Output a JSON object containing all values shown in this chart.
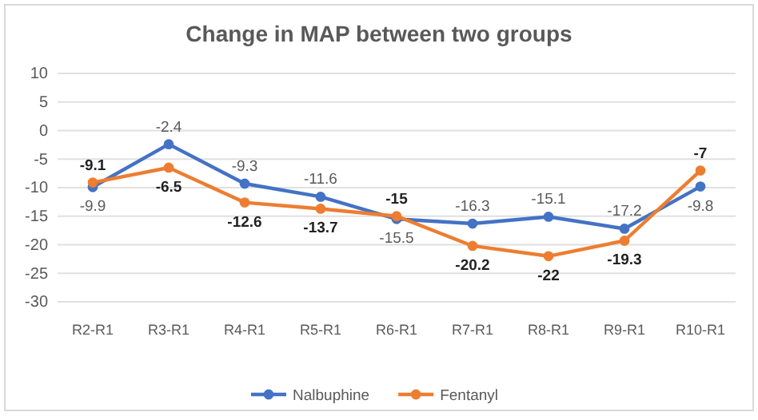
{
  "chart_data": {
    "type": "line",
    "title": "Change in MAP between two groups",
    "categories": [
      "R2-R1",
      "R3-R1",
      "R4-R1",
      "R5-R1",
      "R6-R1",
      "R7-R1",
      "R8-R1",
      "R9-R1",
      "R10-R1"
    ],
    "series": [
      {
        "name": "Nalbuphine",
        "color": "#4472c4",
        "values": [
          -9.9,
          -2.4,
          -9.3,
          -11.6,
          -15.5,
          -16.3,
          -15.1,
          -17.2,
          -9.8
        ]
      },
      {
        "name": "Fentanyl",
        "color": "#ed7d31",
        "values": [
          -9.1,
          -6.5,
          -12.6,
          -13.7,
          -15,
          -20.2,
          -22,
          -19.3,
          -7
        ]
      }
    ],
    "ylim": [
      -30,
      10
    ],
    "yticks": [
      -30,
      -25,
      -20,
      -15,
      -10,
      -5,
      0,
      5,
      10
    ],
    "grid": "y",
    "legend": "bottom",
    "marker": "circle",
    "data_labels": true
  }
}
